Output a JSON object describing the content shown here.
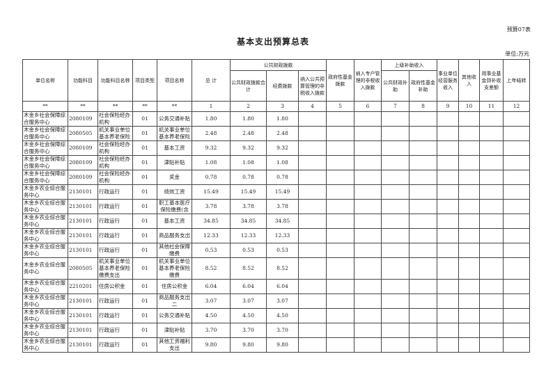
{
  "form_no": "预算07表",
  "title": "基本支出预算总表",
  "unit": "单位:万元",
  "headers": {
    "unit_name": "单位名称",
    "func_code": "功能科目",
    "func_name": "功能科目名称",
    "proj_type": "项目类型",
    "proj_name": "项目名称",
    "total": "总 计",
    "public_group": "公共财政拨款",
    "public_total": "公共财政拨款合计",
    "funding": "经费拨款",
    "nontax": "纳入公共预算管理的非税收入拨款",
    "govfund": "政府性基金拨款",
    "special": "纳入专户管理的非税收入拨款",
    "upper_group": "上级补助收入",
    "upper_public": "公共财政补助",
    "upper_govfund": "政府性基金补助",
    "biz": "事业单位经营服务收入",
    "other": "其他收入",
    "reserve": "用事业基金弥补收支差额",
    "carry": "上年结转"
  },
  "index_row": [
    "**",
    "**",
    "**",
    "**",
    "**",
    "1",
    "2",
    "3",
    "4",
    "5",
    "6",
    "7",
    "8",
    "9",
    "10",
    "11",
    "12"
  ],
  "rows": [
    {
      "unit": "木金乡社会保障综合服务中心",
      "code": "2080109",
      "fname": "社会保险经办机构",
      "type": "01",
      "pname": "公务交通补贴",
      "total": "1.80",
      "pub": "1.80",
      "fund": "1.80"
    },
    {
      "unit": "木金乡社会保障综合服务中心",
      "code": "2080505",
      "fname": "机关事业单位基本养老保险缴费支出",
      "type": "01",
      "pname": "机关事业单位基本养老保险缴费",
      "total": "2.48",
      "pub": "2.48",
      "fund": "2.48"
    },
    {
      "unit": "木金乡社会保障综合服务中心",
      "code": "2080109",
      "fname": "社会保险经办机构",
      "type": "01",
      "pname": "基本工资",
      "total": "9.32",
      "pub": "9.32",
      "fund": "9.32"
    },
    {
      "unit": "木金乡社会保障综合服务中心",
      "code": "2080109",
      "fname": "社会保险经办机构",
      "type": "01",
      "pname": "津贴补贴",
      "total": "1.08",
      "pub": "1.08",
      "fund": "1.08"
    },
    {
      "unit": "木金乡社会保障综合服务中心",
      "code": "2080109",
      "fname": "社会保险经办机构",
      "type": "01",
      "pname": "奖金",
      "total": "0.78",
      "pub": "0.78",
      "fund": "0.78"
    },
    {
      "unit": "木金乡农业综合服务中心",
      "code": "2130101",
      "fname": "行政运行",
      "type": "01",
      "pname": "绩效工资",
      "total": "15.49",
      "pub": "15.49",
      "fund": "15.49"
    },
    {
      "unit": "木金乡农业综合服务中心",
      "code": "2130101",
      "fname": "行政运行",
      "type": "01",
      "pname": "职工基本医疗保险缴费(含生育保险)",
      "total": "3.78",
      "pub": "3.78",
      "fund": "3.78"
    },
    {
      "unit": "木金乡农业综合服务中心",
      "code": "2130101",
      "fname": "行政运行",
      "type": "01",
      "pname": "基本工资",
      "total": "34.85",
      "pub": "34.85",
      "fund": "34.85"
    },
    {
      "unit": "木金乡农业综合服务中心",
      "code": "2130101",
      "fname": "行政运行",
      "type": "01",
      "pname": "商品服务支出",
      "total": "12.33",
      "pub": "12.33",
      "fund": "12.33"
    },
    {
      "unit": "木金乡农业综合服务中心",
      "code": "2130101",
      "fname": "行政运行",
      "type": "01",
      "pname": "其他社会保障缴费",
      "total": "0.53",
      "pub": "0.53",
      "fund": "0.53"
    },
    {
      "unit": "木金乡农业综合服务中心",
      "code": "2080505",
      "fname": "机关事业单位基本养老保险缴费支出",
      "type": "01",
      "pname": "机关事业单位基本养老保险缴费",
      "total": "8.52",
      "pub": "8.52",
      "fund": "8.52"
    },
    {
      "unit": "木金乡农业综合服务中心",
      "code": "2210201",
      "fname": "住房公积金",
      "type": "01",
      "pname": "住房公积金",
      "total": "6.04",
      "pub": "6.04",
      "fund": "6.04"
    },
    {
      "unit": "木金乡农业综合服务中心",
      "code": "2130101",
      "fname": "行政运行",
      "type": "01",
      "pname": "商品服务支出二",
      "total": "3.07",
      "pub": "3.07",
      "fund": "3.07"
    },
    {
      "unit": "木金乡农业综合服务中心",
      "code": "2130101",
      "fname": "行政运行",
      "type": "01",
      "pname": "公务交通补贴",
      "total": "4.50",
      "pub": "4.50",
      "fund": "4.50"
    },
    {
      "unit": "木金乡农业综合服务中心",
      "code": "2130101",
      "fname": "行政运行",
      "type": "01",
      "pname": "津贴补贴",
      "total": "3.70",
      "pub": "3.70",
      "fund": "3.70"
    },
    {
      "unit": "木金乡农业综合服务中心",
      "code": "2130101",
      "fname": "行政运行",
      "type": "01",
      "pname": "其他工资福利支出",
      "total": "9.80",
      "pub": "9.80",
      "fund": "9.80"
    }
  ]
}
